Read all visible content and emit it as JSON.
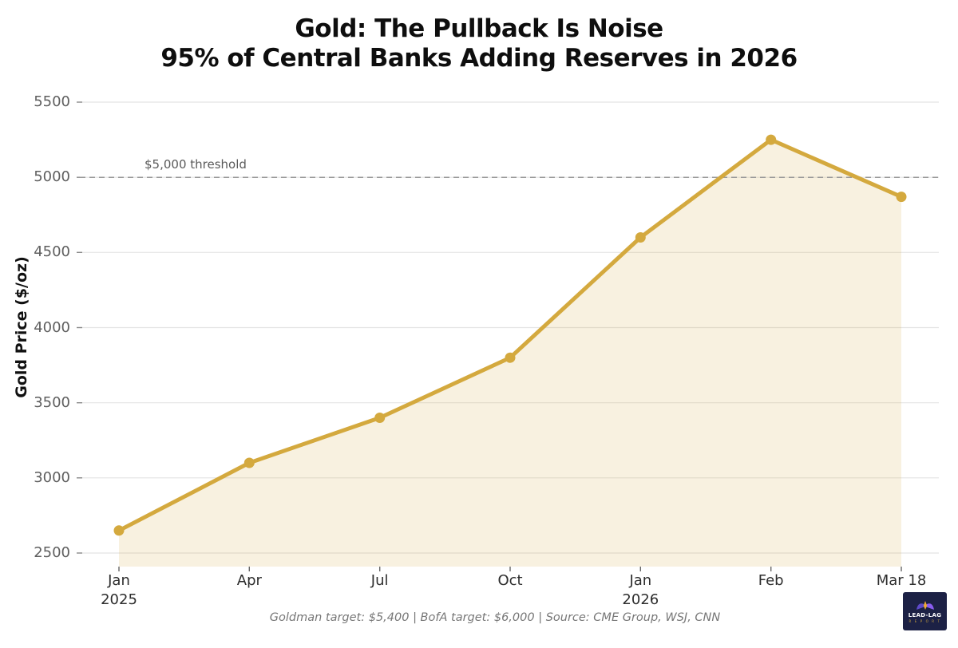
{
  "title": {
    "line1": "Gold: The Pullback Is Noise",
    "line2": "95% of Central Banks Adding Reserves in 2026"
  },
  "chart_data": {
    "type": "area",
    "categories": [
      [
        "Jan",
        "2025"
      ],
      [
        "Apr"
      ],
      [
        "Jul"
      ],
      [
        "Oct"
      ],
      [
        "Jan",
        "2026"
      ],
      [
        "Feb"
      ],
      [
        "Mar 18"
      ]
    ],
    "values": [
      2650,
      3100,
      3400,
      3800,
      4600,
      5250,
      4870
    ],
    "series_name": "Gold Price",
    "title": "Gold: The Pullback Is Noise — 95% of Central Banks Adding Reserves in 2026",
    "xlabel": "",
    "ylabel": "Gold Price ($/oz)",
    "ylim": [
      2500,
      5500
    ],
    "yticks": [
      2500,
      3000,
      3500,
      4000,
      4500,
      5000,
      5500
    ],
    "grid": true,
    "legend": false,
    "threshold": {
      "value": 5000,
      "label": "$5,000 threshold"
    },
    "line_color": "#d4a93e",
    "fill_color": "rgba(212,169,61,0.16)",
    "grid_color": "#e4e4e4",
    "threshold_color": "#999999"
  },
  "footer": {
    "text": "Goldman target: $5,400  |  BofA target: $6,000  |  Source: CME Group, WSJ, CNN"
  },
  "logo": {
    "name": "LEAD-LAG",
    "sub": "R E P O R T"
  }
}
